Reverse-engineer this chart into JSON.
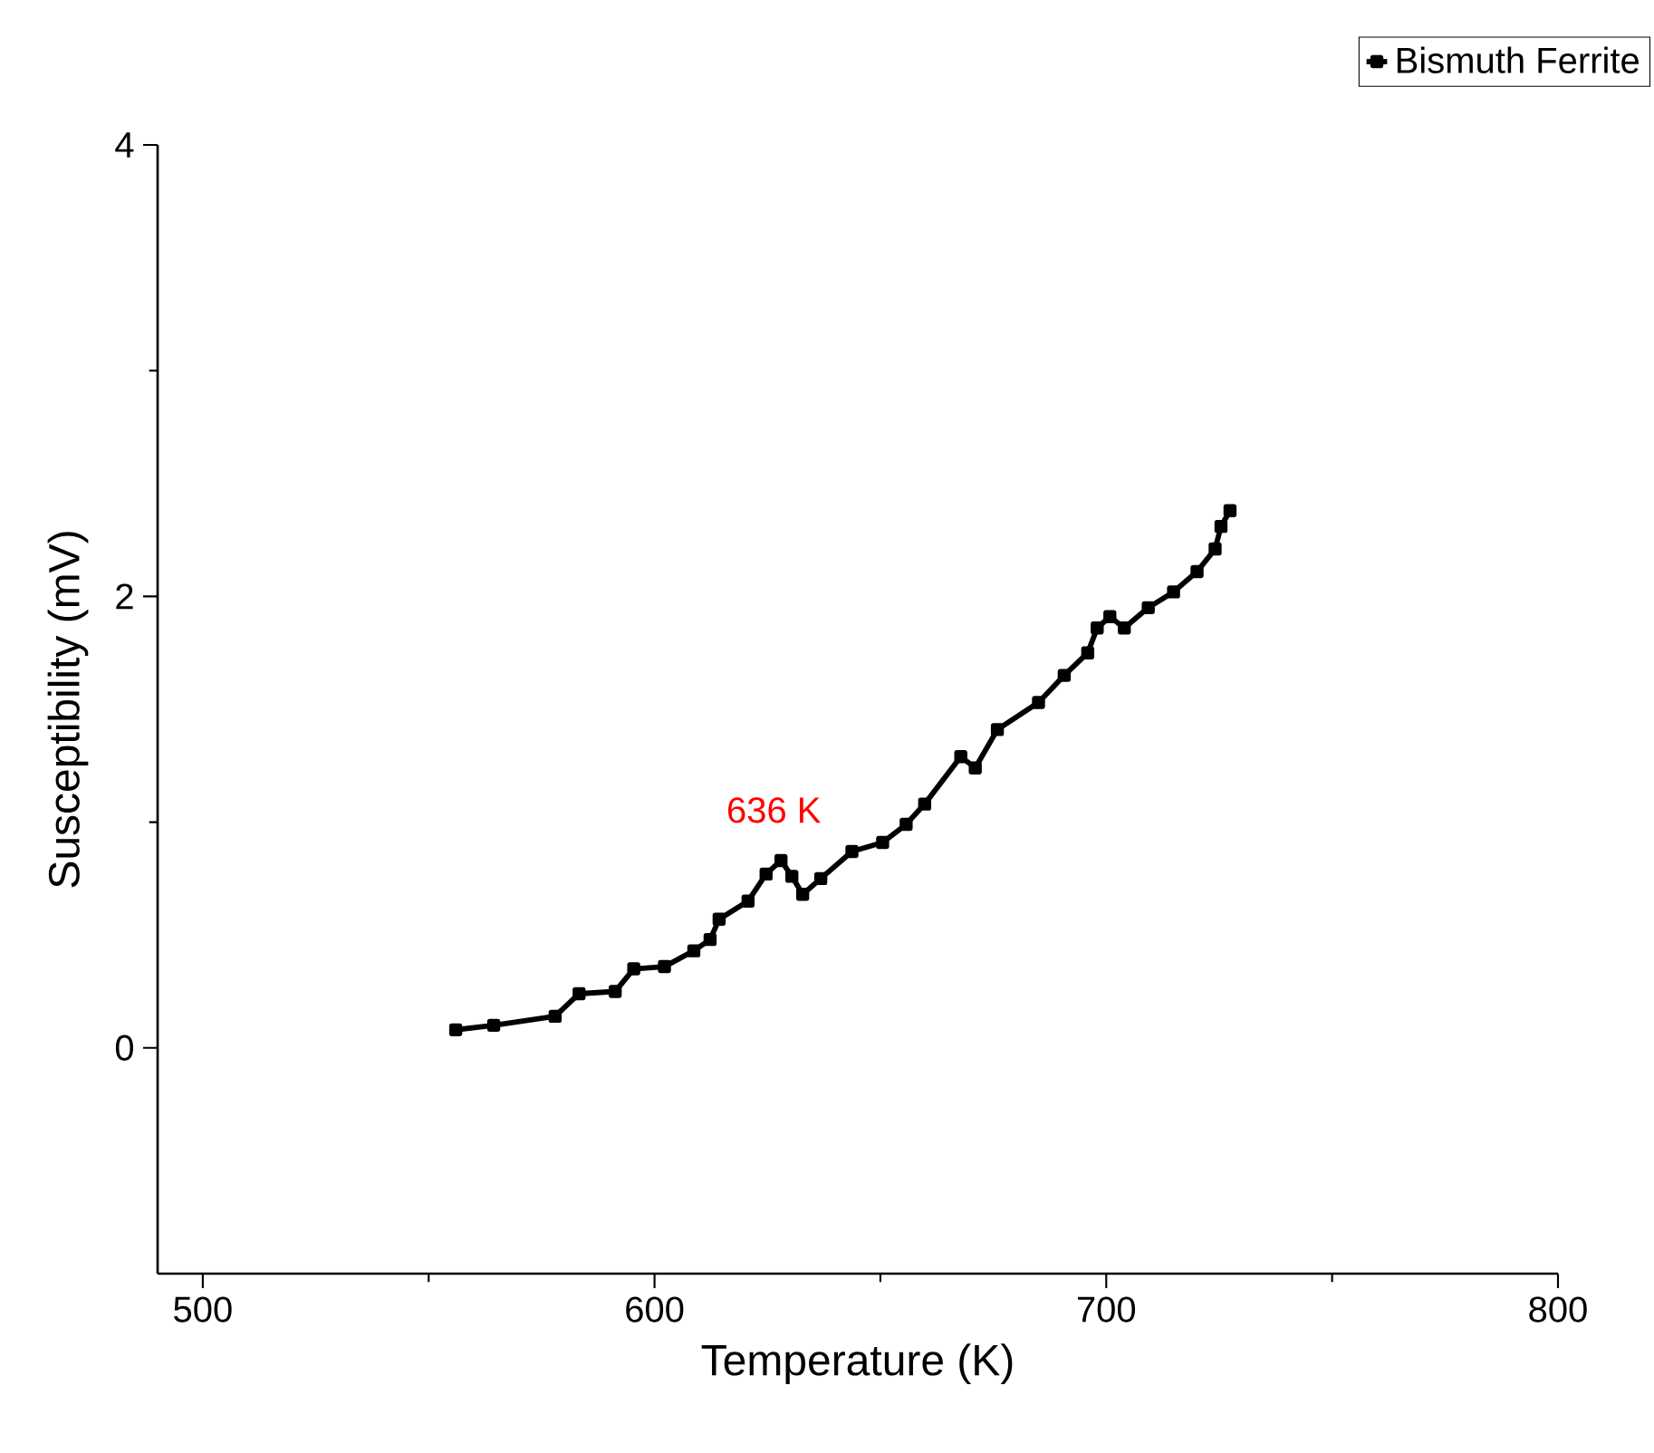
{
  "chart_data": {
    "type": "line",
    "xlabel": "Temperature (K)",
    "ylabel": "Susceptibility (mV)",
    "xlim": [
      490,
      800
    ],
    "xticks": [
      500,
      600,
      700,
      800
    ],
    "ylim": [
      -1,
      4
    ],
    "yticks": [
      0,
      2,
      4
    ],
    "legend": "top right",
    "marker": "square",
    "grid": false,
    "annotations": [
      {
        "text": "636 K",
        "x": 628,
        "y": 0.83
      }
    ],
    "series": [
      {
        "name": "Bismuth Ferrite",
        "color": "#000000",
        "x": [
          556,
          564.4,
          578,
          583.3,
          591.3,
          595.4,
          602.2,
          608.7,
          612.3,
          614.3,
          620.7,
          624.7,
          628,
          630.4,
          632.8,
          636.8,
          643.7,
          650.5,
          655.7,
          659.8,
          667.8,
          671,
          675.9,
          685,
          690.7,
          695.9,
          698,
          700.8,
          704,
          709.3,
          714.9,
          720.1,
          724.1,
          725.4,
          727.4
        ],
        "values": [
          0.08,
          0.1,
          0.14,
          0.24,
          0.25,
          0.35,
          0.36,
          0.43,
          0.48,
          0.57,
          0.65,
          0.77,
          0.83,
          0.76,
          0.68,
          0.75,
          0.87,
          0.91,
          0.99,
          1.08,
          1.29,
          1.24,
          1.41,
          1.53,
          1.65,
          1.75,
          1.86,
          1.91,
          1.86,
          1.95,
          2.02,
          2.11,
          2.21,
          2.31,
          2.38
        ]
      }
    ]
  }
}
